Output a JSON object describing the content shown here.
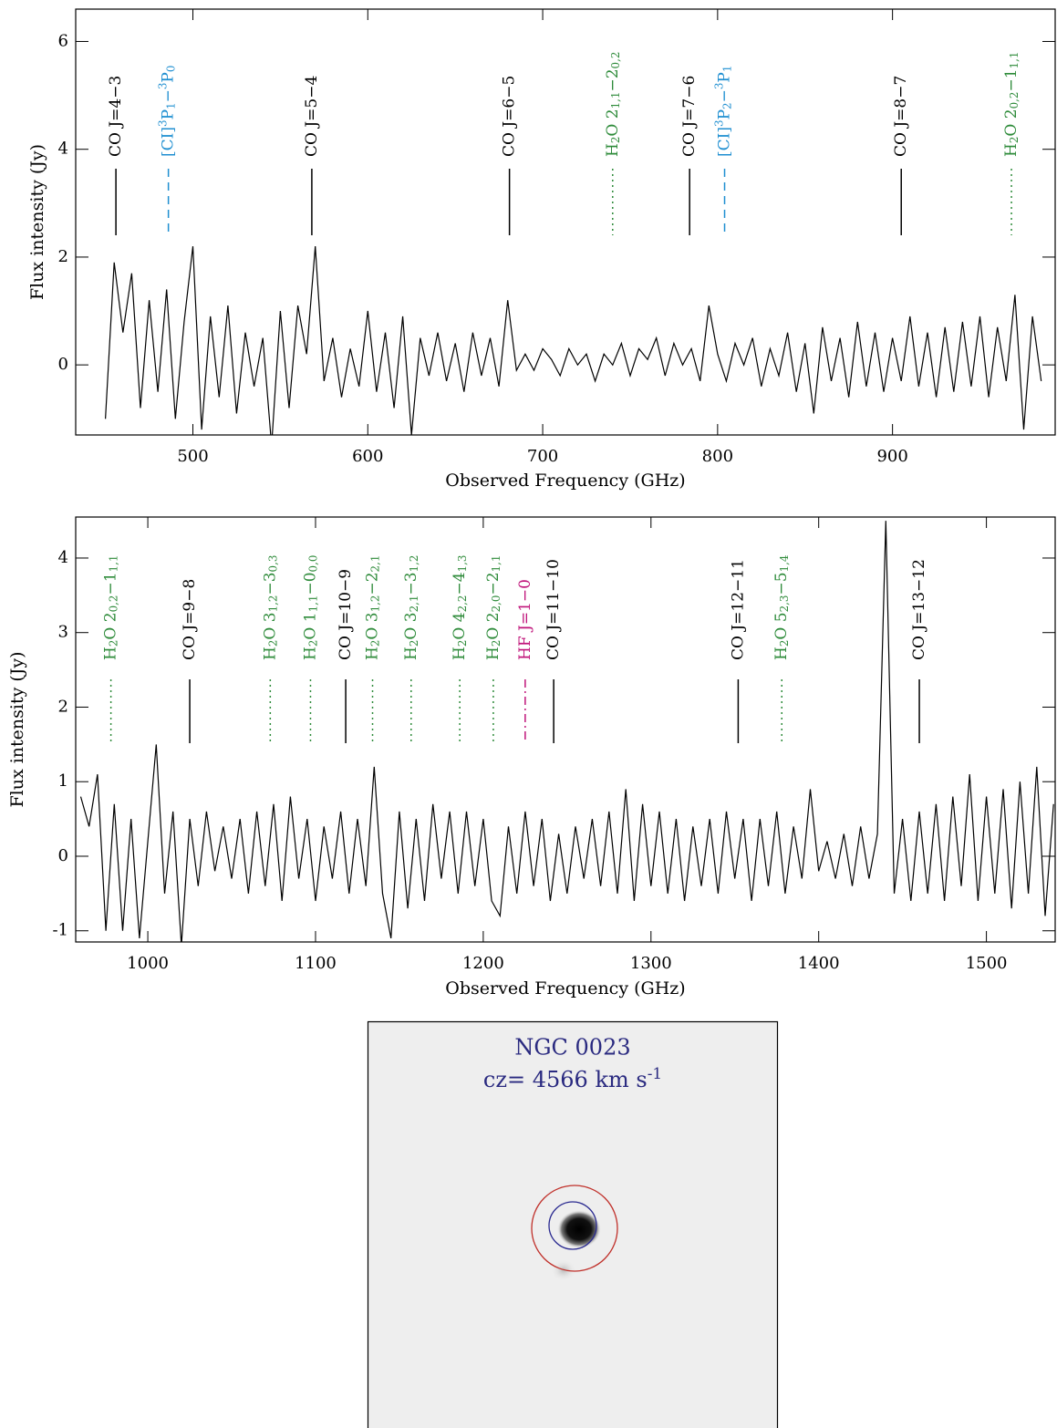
{
  "chart_data": [
    {
      "type": "line",
      "xlabel": "Observed Frequency (GHz)",
      "ylabel": "Flux intensity (Jy)",
      "xlim": [
        433,
        993
      ],
      "ylim": [
        -1.3,
        6.6
      ],
      "xticks": [
        500,
        600,
        700,
        800,
        900
      ],
      "yticks": [
        0,
        2,
        4,
        6
      ],
      "series": [
        {
          "color": "#000000",
          "x": [
            450,
            455,
            460,
            465,
            470,
            475,
            480,
            485,
            490,
            495,
            500,
            505,
            510,
            515,
            520,
            525,
            530,
            535,
            540,
            545,
            550,
            555,
            560,
            565,
            570,
            575,
            580,
            585,
            590,
            595,
            600,
            605,
            610,
            615,
            620,
            625,
            630,
            635,
            640,
            645,
            650,
            655,
            660,
            665,
            670,
            675,
            680,
            685,
            690,
            695,
            700,
            705,
            710,
            715,
            720,
            725,
            730,
            735,
            740,
            745,
            750,
            755,
            760,
            765,
            770,
            775,
            780,
            785,
            790,
            795,
            800,
            805,
            810,
            815,
            820,
            825,
            830,
            835,
            840,
            845,
            850,
            855,
            860,
            865,
            870,
            875,
            880,
            885,
            890,
            895,
            900,
            905,
            910,
            915,
            920,
            925,
            930,
            935,
            940,
            945,
            950,
            955,
            960,
            965,
            970,
            975,
            980,
            985
          ],
          "values": [
            -1.0,
            1.9,
            0.6,
            1.7,
            -0.8,
            1.2,
            -0.5,
            1.4,
            -1.0,
            0.8,
            2.2,
            -1.2,
            0.9,
            -0.6,
            1.1,
            -0.9,
            0.6,
            -0.4,
            0.5,
            -1.5,
            1.0,
            -0.8,
            1.1,
            0.2,
            2.2,
            -0.3,
            0.5,
            -0.6,
            0.3,
            -0.4,
            1.0,
            -0.5,
            0.6,
            -0.8,
            0.9,
            -1.3,
            0.5,
            -0.2,
            0.6,
            -0.3,
            0.4,
            -0.5,
            0.6,
            -0.2,
            0.5,
            -0.4,
            1.2,
            -0.1,
            0.2,
            -0.1,
            0.3,
            0.1,
            -0.2,
            0.3,
            0.0,
            0.2,
            -0.3,
            0.2,
            0.0,
            0.4,
            -0.2,
            0.3,
            0.1,
            0.5,
            -0.2,
            0.4,
            0.0,
            0.3,
            -0.3,
            1.1,
            0.2,
            -0.3,
            0.4,
            0.0,
            0.5,
            -0.4,
            0.3,
            -0.2,
            0.6,
            -0.5,
            0.4,
            -0.9,
            0.7,
            -0.3,
            0.5,
            -0.6,
            0.8,
            -0.4,
            0.6,
            -0.5,
            0.5,
            -0.3,
            0.9,
            -0.4,
            0.6,
            -0.6,
            0.7,
            -0.5,
            0.8,
            -0.4,
            0.9,
            -0.6,
            0.7,
            -0.3,
            1.3,
            -1.2,
            0.9,
            -0.3
          ]
        }
      ],
      "annotations": [
        {
          "x": 456,
          "color": "#000000",
          "style": "solid",
          "label": [
            "CO J=4−3"
          ]
        },
        {
          "x": 486,
          "color": "#1f8fd1",
          "style": "dashed",
          "label": [
            "[CI]",
            {
              "sup": "3"
            },
            "P",
            {
              "sub": "1"
            },
            "−",
            {
              "sup": "3"
            },
            "P",
            {
              "sub": "0"
            }
          ]
        },
        {
          "x": 568,
          "color": "#000000",
          "style": "solid",
          "label": [
            "CO J=5−4"
          ]
        },
        {
          "x": 681,
          "color": "#000000",
          "style": "solid",
          "label": [
            "CO J=6−5"
          ]
        },
        {
          "x": 740,
          "color": "#2e8b3a",
          "style": "dotted",
          "label": [
            "H",
            {
              "sub": "2"
            },
            "O 2",
            {
              "sub": "1,1"
            },
            "−2",
            {
              "sub": "0,2"
            }
          ]
        },
        {
          "x": 784,
          "color": "#000000",
          "style": "solid",
          "label": [
            "CO J=7−6"
          ]
        },
        {
          "x": 804,
          "color": "#1f8fd1",
          "style": "dashed",
          "label": [
            "[CI]",
            {
              "sup": "3"
            },
            "P",
            {
              "sub": "2"
            },
            "−",
            {
              "sup": "3"
            },
            "P",
            {
              "sub": "1"
            }
          ]
        },
        {
          "x": 905,
          "color": "#000000",
          "style": "solid",
          "label": [
            "CO J=8−7"
          ]
        },
        {
          "x": 968,
          "color": "#2e8b3a",
          "style": "dotted",
          "label": [
            "H",
            {
              "sub": "2"
            },
            "O 2",
            {
              "sub": "0,2"
            },
            "−1",
            {
              "sub": "1,1"
            }
          ]
        }
      ]
    },
    {
      "type": "line",
      "xlabel": "Observed Frequency (GHz)",
      "ylabel": "Flux intensity (Jy)",
      "xlim": [
        957,
        1541
      ],
      "ylim": [
        -1.15,
        4.55
      ],
      "xticks": [
        1000,
        1100,
        1200,
        1300,
        1400,
        1500
      ],
      "yticks": [
        -1,
        0,
        1,
        2,
        3,
        4
      ],
      "series": [
        {
          "color": "#000000",
          "x": [
            960,
            965,
            970,
            975,
            980,
            985,
            990,
            995,
            1000,
            1005,
            1010,
            1015,
            1020,
            1025,
            1030,
            1035,
            1040,
            1045,
            1050,
            1055,
            1060,
            1065,
            1070,
            1075,
            1080,
            1085,
            1090,
            1095,
            1100,
            1105,
            1110,
            1115,
            1120,
            1125,
            1130,
            1135,
            1140,
            1145,
            1150,
            1155,
            1160,
            1165,
            1170,
            1175,
            1180,
            1185,
            1190,
            1195,
            1200,
            1205,
            1210,
            1215,
            1220,
            1225,
            1230,
            1235,
            1240,
            1245,
            1250,
            1255,
            1260,
            1265,
            1270,
            1275,
            1280,
            1285,
            1290,
            1295,
            1300,
            1305,
            1310,
            1315,
            1320,
            1325,
            1330,
            1335,
            1340,
            1345,
            1350,
            1355,
            1360,
            1365,
            1370,
            1375,
            1380,
            1385,
            1390,
            1395,
            1400,
            1405,
            1410,
            1415,
            1420,
            1425,
            1430,
            1435,
            1440,
            1445,
            1450,
            1455,
            1460,
            1465,
            1470,
            1475,
            1480,
            1485,
            1490,
            1495,
            1500,
            1505,
            1510,
            1515,
            1520,
            1525,
            1530,
            1535,
            1540
          ],
          "values": [
            0.8,
            0.4,
            1.1,
            -1.0,
            0.7,
            -1.0,
            0.5,
            -1.1,
            0.2,
            1.5,
            -0.5,
            0.6,
            -1.2,
            0.5,
            -0.4,
            0.6,
            -0.2,
            0.4,
            -0.3,
            0.5,
            -0.5,
            0.6,
            -0.4,
            0.7,
            -0.6,
            0.8,
            -0.3,
            0.5,
            -0.6,
            0.4,
            -0.3,
            0.6,
            -0.5,
            0.5,
            -0.4,
            1.2,
            -0.5,
            -1.1,
            0.6,
            -0.7,
            0.5,
            -0.6,
            0.7,
            -0.3,
            0.6,
            -0.5,
            0.6,
            -0.4,
            0.5,
            -0.6,
            -0.8,
            0.4,
            -0.5,
            0.6,
            -0.4,
            0.5,
            -0.6,
            0.3,
            -0.5,
            0.4,
            -0.3,
            0.5,
            -0.4,
            0.6,
            -0.5,
            0.9,
            -0.6,
            0.7,
            -0.4,
            0.6,
            -0.5,
            0.5,
            -0.6,
            0.4,
            -0.4,
            0.5,
            -0.5,
            0.6,
            -0.3,
            0.5,
            -0.6,
            0.5,
            -0.4,
            0.6,
            -0.5,
            0.4,
            -0.3,
            0.9,
            -0.2,
            0.2,
            -0.3,
            0.3,
            -0.4,
            0.4,
            -0.3,
            0.3,
            4.5,
            -0.5,
            0.5,
            -0.6,
            0.6,
            -0.5,
            0.7,
            -0.6,
            0.8,
            -0.4,
            1.1,
            -0.6,
            0.8,
            -0.5,
            0.9,
            -0.7,
            1.0,
            -0.5,
            1.2,
            -0.8,
            0.7
          ]
        }
      ],
      "annotations": [
        {
          "x": 978,
          "color": "#2e8b3a",
          "style": "dotted",
          "label": [
            "H",
            {
              "sub": "2"
            },
            "O 2",
            {
              "sub": "0,2"
            },
            "−1",
            {
              "sub": "1,1"
            }
          ]
        },
        {
          "x": 1025,
          "color": "#000000",
          "style": "solid",
          "label": [
            "CO J=9−8"
          ]
        },
        {
          "x": 1073,
          "color": "#2e8b3a",
          "style": "dotted",
          "label": [
            "H",
            {
              "sub": "2"
            },
            "O 3",
            {
              "sub": "1,2"
            },
            "−3",
            {
              "sub": "0,3"
            }
          ]
        },
        {
          "x": 1097,
          "color": "#2e8b3a",
          "style": "dotted",
          "label": [
            "H",
            {
              "sub": "2"
            },
            "O 1",
            {
              "sub": "1,1"
            },
            "−0",
            {
              "sub": "0,0"
            }
          ]
        },
        {
          "x": 1118,
          "color": "#000000",
          "style": "solid",
          "label": [
            "CO J=10−9"
          ]
        },
        {
          "x": 1134,
          "color": "#2e8b3a",
          "style": "dotted",
          "label": [
            "H",
            {
              "sub": "2"
            },
            "O 3",
            {
              "sub": "1,2"
            },
            "−2",
            {
              "sub": "2,1"
            }
          ]
        },
        {
          "x": 1157,
          "color": "#2e8b3a",
          "style": "dotted",
          "label": [
            "H",
            {
              "sub": "2"
            },
            "O 3",
            {
              "sub": "2,1"
            },
            "−3",
            {
              "sub": "1,2"
            }
          ]
        },
        {
          "x": 1186,
          "color": "#2e8b3a",
          "style": "dotted",
          "label": [
            "H",
            {
              "sub": "2"
            },
            "O 4",
            {
              "sub": "2,2"
            },
            "−4",
            {
              "sub": "1,3"
            }
          ]
        },
        {
          "x": 1206,
          "color": "#2e8b3a",
          "style": "dotted",
          "label": [
            "H",
            {
              "sub": "2"
            },
            "O 2",
            {
              "sub": "2,0"
            },
            "−2",
            {
              "sub": "1,1"
            }
          ]
        },
        {
          "x": 1225,
          "color": "#c0147a",
          "style": "dashdot",
          "label": [
            "HF J=1−0"
          ]
        },
        {
          "x": 1242,
          "color": "#000000",
          "style": "solid",
          "label": [
            "CO J=11−10"
          ]
        },
        {
          "x": 1352,
          "color": "#000000",
          "style": "solid",
          "label": [
            "CO J=12−11"
          ]
        },
        {
          "x": 1378,
          "color": "#2e8b3a",
          "style": "dotted",
          "label": [
            "H",
            {
              "sub": "2"
            },
            "O 5",
            {
              "sub": "2,3"
            },
            "−5",
            {
              "sub": "1,4"
            }
          ]
        },
        {
          "x": 1460,
          "color": "#000000",
          "style": "solid",
          "label": [
            "CO J=13−12"
          ]
        }
      ]
    }
  ],
  "image_panel": {
    "title": "NGC 0023",
    "subtitle": [
      "cz= 4566 km s",
      {
        "sup": "-1"
      }
    ]
  }
}
